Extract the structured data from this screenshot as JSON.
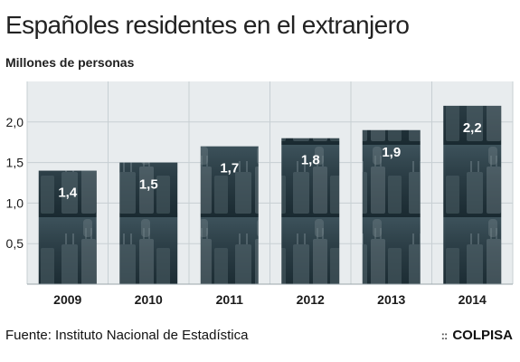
{
  "title": "Españoles residentes en el extranjero",
  "subtitle": "Millones de personas",
  "source": "Fuente: Instituto Nacional de Estadística",
  "brand": {
    "mark": "::",
    "name": "COLPISA"
  },
  "colors": {
    "plot_background": "#e8ecee",
    "grid": "#c7cfd3",
    "bar_dark": "#1f3038",
    "bar_mid": "#4c6068",
    "label_text": "#ffffff"
  },
  "chart_data": {
    "type": "bar",
    "categories": [
      "2009",
      "2010",
      "2011",
      "2012",
      "2013",
      "2014"
    ],
    "values": [
      1.4,
      1.5,
      1.7,
      1.8,
      1.9,
      2.2
    ],
    "value_labels": [
      "1,4",
      "1,5",
      "1,7",
      "1,8",
      "1,9",
      "2,2"
    ],
    "title": "Españoles residentes en el extranjero",
    "ylabel": "Millones de personas",
    "xlabel": "",
    "ylim": [
      0,
      2.5
    ],
    "yticks": [
      0.5,
      1.0,
      1.5,
      2.0
    ],
    "ytick_labels": [
      "0,5",
      "1,0",
      "1,5",
      "2,0"
    ],
    "grid": true,
    "bar_fill": "photographic texture (travellers with suitcases)"
  }
}
